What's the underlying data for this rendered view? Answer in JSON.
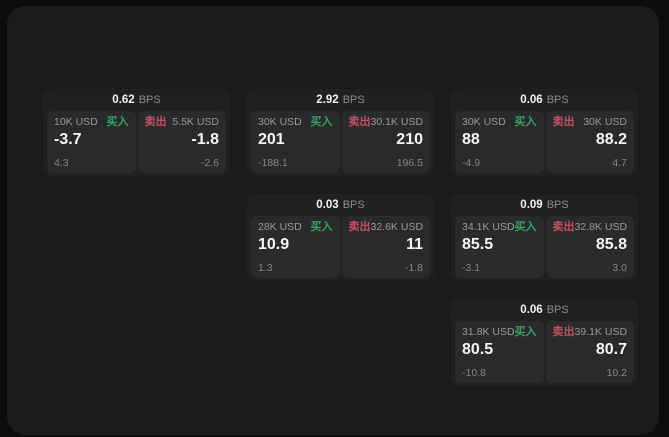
{
  "labels": {
    "bps_unit": "BPS",
    "buy": "买入",
    "sell": "卖出"
  },
  "colors": {
    "buy_green": "#35a566",
    "sell_red": "#c25066",
    "surface": "#1b1b1c",
    "card": "#202022",
    "panel": "#2a2a2c"
  },
  "cards": [
    {
      "bps": "0.62",
      "buy": {
        "size": "10K USD",
        "value": "-3.7",
        "sub": "4.3"
      },
      "sell": {
        "size": "5.5K USD",
        "value": "-1.8",
        "sub": "-2.6"
      }
    },
    {
      "bps": "2.92",
      "buy": {
        "size": "30K USD",
        "value": "201",
        "sub": "-188.1"
      },
      "sell": {
        "size": "30.1K USD",
        "value": "210",
        "sub": "196.5"
      }
    },
    {
      "bps": "0.06",
      "buy": {
        "size": "30K USD",
        "value": "88",
        "sub": "-4.9"
      },
      "sell": {
        "size": "30K USD",
        "value": "88.2",
        "sub": "4.7"
      }
    },
    {
      "bps": "0.03",
      "buy": {
        "size": "28K USD",
        "value": "10.9",
        "sub": "1.3"
      },
      "sell": {
        "size": "32.6K USD",
        "value": "11",
        "sub": "-1.8"
      }
    },
    {
      "bps": "0.09",
      "buy": {
        "size": "34.1K USD",
        "value": "85.5",
        "sub": "-3.1"
      },
      "sell": {
        "size": "32.8K USD",
        "value": "85.8",
        "sub": "3.0"
      }
    },
    {
      "bps": "0.06",
      "buy": {
        "size": "31.8K USD",
        "value": "80.5",
        "sub": "-10.8"
      },
      "sell": {
        "size": "39.1K USD",
        "value": "80.7",
        "sub": "10.2"
      }
    }
  ]
}
